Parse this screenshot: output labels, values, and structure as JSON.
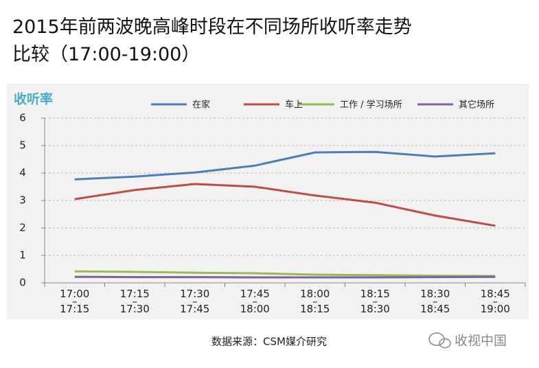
{
  "chart_data": {
    "type": "line",
    "title": "2015年前两波晚高峰时段在不同场所收听率走势比较（17:00-19:00）",
    "y_label": "收听率",
    "categories": [
      "17:00\n–\n17:15",
      "17:15\n–\n17:30",
      "17:30\n–\n17:45",
      "17:45\n–\n18:00",
      "18:00\n–\n18:15",
      "18:15\n–\n18:30",
      "18:30\n–\n18:45",
      "18:45\n–\n19:00"
    ],
    "series": [
      {
        "name": "在家",
        "color": "#4a7ebb",
        "values": [
          3.77,
          3.87,
          4.02,
          4.27,
          4.75,
          4.77,
          4.6,
          4.72
        ]
      },
      {
        "name": "车上",
        "color": "#be4b48",
        "values": [
          3.05,
          3.38,
          3.6,
          3.5,
          3.18,
          2.92,
          2.45,
          2.08
        ]
      },
      {
        "name": "工作 / 学习场所",
        "color": "#98b954",
        "values": [
          0.42,
          0.4,
          0.37,
          0.35,
          0.3,
          0.28,
          0.26,
          0.25
        ]
      },
      {
        "name": "其它场所",
        "color": "#7d60a0",
        "values": [
          0.22,
          0.21,
          0.21,
          0.2,
          0.2,
          0.2,
          0.21,
          0.22
        ]
      }
    ],
    "ylim": [
      0,
      6
    ],
    "yticks": [
      0,
      1,
      2,
      3,
      4,
      5,
      6
    ],
    "grid": true,
    "source": "数据来源：CSM媒介研究",
    "watermark": "收视中国"
  }
}
